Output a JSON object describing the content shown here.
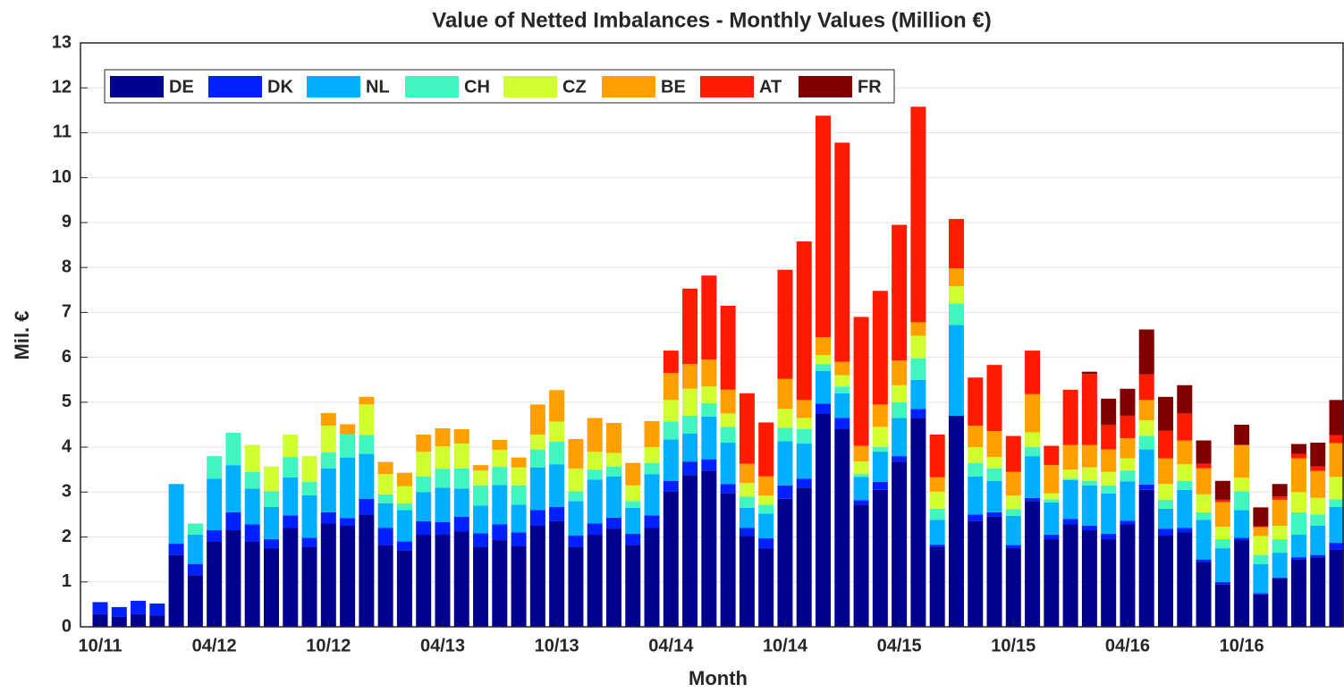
{
  "chart_data": {
    "type": "stacked-bar",
    "title": "Value of Netted Imbalances - Monthly Values (Million €)",
    "x_label": "Month",
    "y_label": "Mil. €",
    "categories": [
      "10/11",
      null,
      null,
      null,
      null,
      null,
      "04/12",
      null,
      null,
      null,
      null,
      null,
      "10/12",
      null,
      null,
      null,
      null,
      null,
      "04/13",
      null,
      null,
      null,
      null,
      null,
      "10/13",
      null,
      null,
      null,
      null,
      null,
      "04/14",
      null,
      null,
      null,
      null,
      null,
      "10/14",
      null,
      null,
      null,
      null,
      null,
      "04/15",
      null,
      null,
      null,
      null,
      null,
      "10/15",
      null,
      null,
      null,
      null,
      null,
      "04/16",
      null,
      null,
      null,
      null,
      null,
      "10/16",
      null,
      null,
      null,
      null,
      null
    ],
    "ylim": [
      0,
      13
    ],
    "yticks": [
      0,
      1,
      2,
      3,
      4,
      5,
      6,
      7,
      8,
      9,
      10,
      11,
      12,
      13
    ],
    "grid": true,
    "legend": "upper-left",
    "series": [
      {
        "name": "DE",
        "color": "#00008f",
        "values": [
          0.28,
          0.22,
          0.28,
          0.25,
          1.6,
          1.15,
          1.9,
          2.15,
          1.9,
          1.75,
          2.2,
          1.78,
          2.3,
          2.25,
          2.5,
          1.82,
          1.7,
          2.05,
          2.05,
          2.12,
          1.78,
          1.93,
          1.8,
          2.25,
          2.35,
          1.78,
          2.05,
          2.18,
          1.82,
          2.2,
          3.02,
          3.38,
          3.48,
          2.98,
          2.02,
          1.75,
          2.85,
          3.1,
          4.75,
          4.4,
          2.72,
          3.05,
          3.68,
          4.65,
          1.78,
          4.7,
          2.35,
          2.45,
          1.75,
          2.8,
          1.95,
          2.28,
          2.15,
          1.95,
          2.28,
          3.05,
          2.03,
          2.1,
          1.45,
          0.95,
          1.93,
          0.72,
          1.08,
          1.5,
          1.55,
          1.72
        ]
      },
      {
        "name": "DK",
        "color": "#0020ff",
        "values": [
          0.27,
          0.22,
          0.3,
          0.27,
          0.25,
          0.25,
          0.25,
          0.4,
          0.38,
          0.2,
          0.28,
          0.2,
          0.25,
          0.17,
          0.35,
          0.38,
          0.2,
          0.3,
          0.28,
          0.33,
          0.3,
          0.35,
          0.3,
          0.35,
          0.32,
          0.25,
          0.25,
          0.25,
          0.25,
          0.28,
          0.23,
          0.3,
          0.25,
          0.2,
          0.18,
          0.22,
          0.3,
          0.2,
          0.22,
          0.25,
          0.1,
          0.18,
          0.12,
          0.2,
          0.05,
          0,
          0.15,
          0.1,
          0.07,
          0.07,
          0.1,
          0.12,
          0.1,
          0.12,
          0.08,
          0.12,
          0.15,
          0.1,
          0.05,
          0.05,
          0.05,
          0.03,
          0.02,
          0.05,
          0.05,
          0.15
        ]
      },
      {
        "name": "NL",
        "color": "#00afff",
        "values": [
          0,
          0,
          0,
          0,
          1.33,
          0.65,
          1.15,
          1.05,
          0.8,
          0.72,
          0.85,
          0.95,
          0.98,
          1.35,
          1.0,
          0.55,
          0.7,
          0.65,
          0.77,
          0.63,
          0.62,
          0.88,
          0.62,
          0.95,
          0.95,
          0.77,
          0.98,
          0.92,
          0.58,
          0.92,
          0.92,
          0.62,
          0.95,
          0.92,
          0.45,
          0.55,
          0.98,
          0.78,
          0.73,
          0.55,
          0.52,
          0.67,
          0.85,
          0.65,
          0.55,
          2.02,
          0.85,
          0.7,
          0.65,
          0.93,
          0.72,
          0.87,
          0.9,
          0.9,
          0.88,
          0.78,
          0.45,
          0.85,
          0.88,
          0.75,
          0.62,
          0.65,
          0.55,
          0.5,
          0.65,
          0.8
        ]
      },
      {
        "name": "CH",
        "color": "#40f5c0",
        "values": [
          0,
          0,
          0,
          0,
          0,
          0.25,
          0.5,
          0.72,
          0.37,
          0.35,
          0.45,
          0.3,
          0.35,
          0.52,
          0.42,
          0.2,
          0.15,
          0.35,
          0.42,
          0.45,
          0.45,
          0.4,
          0.43,
          0.4,
          0.5,
          0.22,
          0.22,
          0.22,
          0.15,
          0.25,
          0.4,
          0.4,
          0.3,
          0.35,
          0.25,
          0.2,
          0.3,
          0.32,
          0.15,
          0.15,
          0.06,
          0.1,
          0.35,
          0.48,
          0.25,
          0.48,
          0.3,
          0.28,
          0.15,
          0.2,
          0.07,
          0.03,
          0.1,
          0.18,
          0.24,
          0.3,
          0.2,
          0.2,
          0.17,
          0.2,
          0.42,
          0.2,
          0.3,
          0.5,
          0.25,
          0.17
        ]
      },
      {
        "name": "CZ",
        "color": "#cfff30",
        "values": [
          0,
          0,
          0,
          0,
          0,
          0,
          0,
          0,
          0.6,
          0.55,
          0.5,
          0.57,
          0.6,
          0,
          0.68,
          0.45,
          0.38,
          0.55,
          0.5,
          0.55,
          0.33,
          0.38,
          0.4,
          0.33,
          0.45,
          0.5,
          0.4,
          0.3,
          0.35,
          0.35,
          0.48,
          0.6,
          0.37,
          0.3,
          0.3,
          0.2,
          0.42,
          0.25,
          0.2,
          0.25,
          0.28,
          0.45,
          0.38,
          0.5,
          0.38,
          0.38,
          0.35,
          0.25,
          0.3,
          0.33,
          0.13,
          0.2,
          0.3,
          0.3,
          0.27,
          0.35,
          0.35,
          0.37,
          0.4,
          0.28,
          0.3,
          0.42,
          0.3,
          0.45,
          0.37,
          0.5
        ]
      },
      {
        "name": "BE",
        "color": "#ffa000",
        "values": [
          0,
          0,
          0,
          0,
          0,
          0,
          0,
          0,
          0,
          0,
          0,
          0,
          0.28,
          0.22,
          0.17,
          0.27,
          0.3,
          0.38,
          0.4,
          0.32,
          0.12,
          0.22,
          0.22,
          0.67,
          0.7,
          0.66,
          0.75,
          0.67,
          0.5,
          0.58,
          0.6,
          0.55,
          0.6,
          0.53,
          0.43,
          0.43,
          0.67,
          0.4,
          0.4,
          0.3,
          0.35,
          0.5,
          0.55,
          0.3,
          0.32,
          0.4,
          0.48,
          0.58,
          0.53,
          0.85,
          0.63,
          0.55,
          0.5,
          0.5,
          0.45,
          0.45,
          0.57,
          0.53,
          0.58,
          0.55,
          0.73,
          0.2,
          0.58,
          0.75,
          0.6,
          0.75
        ]
      },
      {
        "name": "AT",
        "color": "#ff1a00",
        "values": [
          0,
          0,
          0,
          0,
          0,
          0,
          0,
          0,
          0,
          0,
          0,
          0,
          0,
          0,
          0,
          0,
          0,
          0,
          0,
          0,
          0,
          0,
          0,
          0,
          0,
          0,
          0,
          0,
          0,
          0,
          0.5,
          1.68,
          1.87,
          1.87,
          1.57,
          1.2,
          2.43,
          3.53,
          4.93,
          4.88,
          2.87,
          2.53,
          3.02,
          4.8,
          0.95,
          1.1,
          1.07,
          1.47,
          0.8,
          0.97,
          0.43,
          1.23,
          1.58,
          0.55,
          0.5,
          0.57,
          0.62,
          0.6,
          0.1,
          0.05,
          0,
          0.02,
          0.07,
          0.1,
          0.1,
          0.18
        ]
      },
      {
        "name": "FR",
        "color": "#800000",
        "values": [
          0,
          0,
          0,
          0,
          0,
          0,
          0,
          0,
          0,
          0,
          0,
          0,
          0,
          0,
          0,
          0,
          0,
          0,
          0,
          0,
          0,
          0,
          0,
          0,
          0,
          0,
          0,
          0,
          0,
          0,
          0,
          0,
          0,
          0,
          0,
          0,
          0,
          0,
          0,
          0,
          0,
          0,
          0,
          0,
          0,
          0,
          0,
          0,
          0,
          0,
          0,
          0,
          0.05,
          0.58,
          0.6,
          1.0,
          0.75,
          0.63,
          0.52,
          0.42,
          0.45,
          0.42,
          0.28,
          0.22,
          0.53,
          0.78
        ]
      }
    ]
  }
}
